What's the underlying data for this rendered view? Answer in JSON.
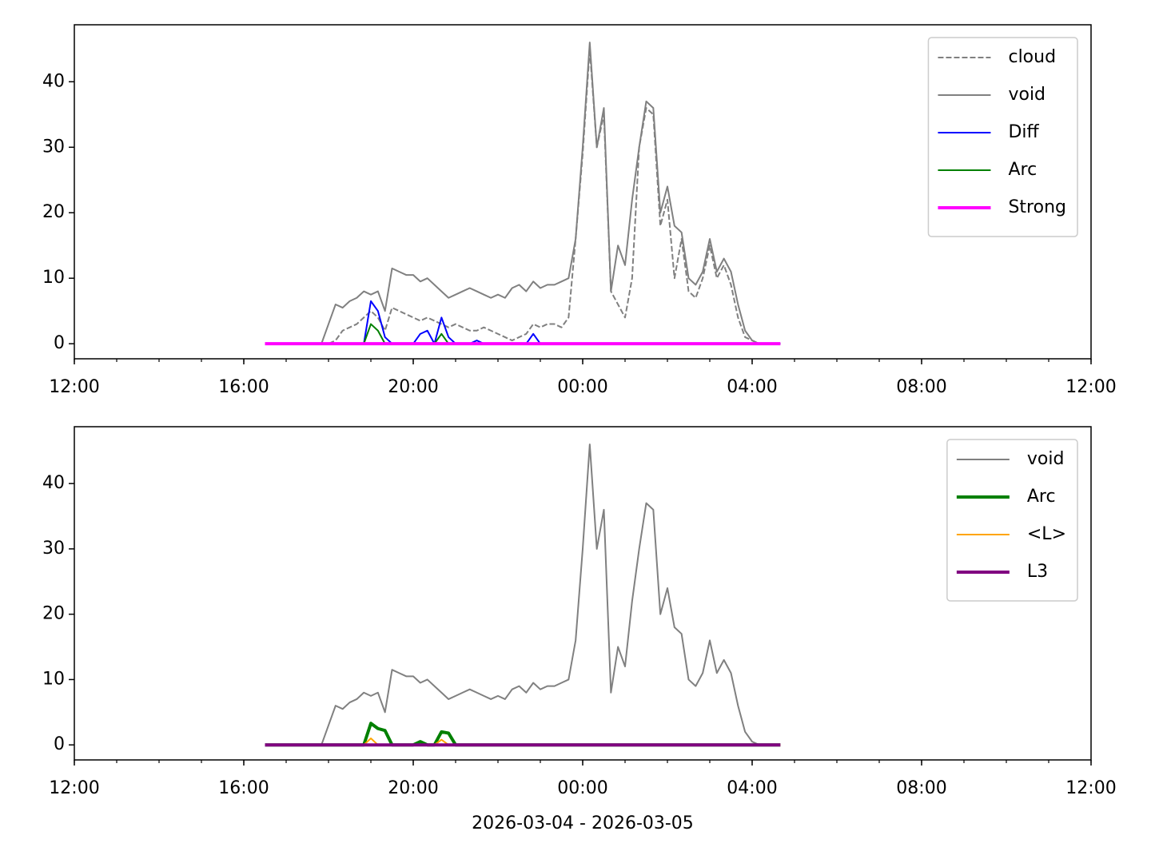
{
  "chart_data": [
    {
      "type": "line",
      "x": [
        "2026-03-04 16:30",
        "2026-03-04 16:40",
        "2026-03-04 16:50",
        "2026-03-04 17:00",
        "2026-03-04 17:10",
        "2026-03-04 17:20",
        "2026-03-04 17:30",
        "2026-03-04 17:40",
        "2026-03-04 17:50",
        "2026-03-04 18:00",
        "2026-03-04 18:10",
        "2026-03-04 18:20",
        "2026-03-04 18:30",
        "2026-03-04 18:40",
        "2026-03-04 18:50",
        "2026-03-04 19:00",
        "2026-03-04 19:10",
        "2026-03-04 19:20",
        "2026-03-04 19:30",
        "2026-03-04 19:40",
        "2026-03-04 19:50",
        "2026-03-04 20:00",
        "2026-03-04 20:10",
        "2026-03-04 20:20",
        "2026-03-04 20:30",
        "2026-03-04 20:40",
        "2026-03-04 20:50",
        "2026-03-04 21:00",
        "2026-03-04 21:10",
        "2026-03-04 21:20",
        "2026-03-04 21:30",
        "2026-03-04 21:40",
        "2026-03-04 21:50",
        "2026-03-04 22:00",
        "2026-03-04 22:10",
        "2026-03-04 22:20",
        "2026-03-04 22:30",
        "2026-03-04 22:40",
        "2026-03-04 22:50",
        "2026-03-04 23:00",
        "2026-03-04 23:10",
        "2026-03-04 23:20",
        "2026-03-04 23:30",
        "2026-03-04 23:40",
        "2026-03-04 23:50",
        "2026-03-05 00:00",
        "2026-03-05 00:10",
        "2026-03-05 00:20",
        "2026-03-05 00:30",
        "2026-03-05 00:40",
        "2026-03-05 00:50",
        "2026-03-05 01:00",
        "2026-03-05 01:10",
        "2026-03-05 01:20",
        "2026-03-05 01:30",
        "2026-03-05 01:40",
        "2026-03-05 01:50",
        "2026-03-05 02:00",
        "2026-03-05 02:10",
        "2026-03-05 02:20",
        "2026-03-05 02:30",
        "2026-03-05 02:40",
        "2026-03-05 02:50",
        "2026-03-05 03:00",
        "2026-03-05 03:10",
        "2026-03-05 03:20",
        "2026-03-05 03:30",
        "2026-03-05 03:40",
        "2026-03-05 03:50",
        "2026-03-05 04:00",
        "2026-03-05 04:10",
        "2026-03-05 04:20",
        "2026-03-05 04:30",
        "2026-03-05 04:40"
      ],
      "series": [
        {
          "name": "cloud",
          "color": "#808080",
          "linestyle": "dashed",
          "linewidth": 2,
          "values": [
            0,
            0,
            0,
            0,
            0,
            0,
            0,
            0,
            0,
            0,
            0.5,
            2,
            2.5,
            3,
            4,
            5,
            4,
            2,
            5.5,
            5,
            4.5,
            4,
            3.5,
            4,
            3.5,
            3,
            2.5,
            3,
            2.5,
            2,
            2,
            2.5,
            2,
            1.5,
            1,
            0.5,
            1,
            1.5,
            3,
            2.5,
            3,
            3,
            2.5,
            4,
            16,
            29,
            45,
            30,
            35,
            8,
            6,
            4,
            10,
            30,
            36,
            35,
            18,
            22,
            10,
            16,
            8,
            7,
            10,
            15,
            10,
            12,
            9,
            4,
            1,
            0.5,
            0,
            0,
            0,
            0
          ]
        },
        {
          "name": "void",
          "color": "#808080",
          "linestyle": "solid",
          "linewidth": 2,
          "values": [
            0,
            0,
            0,
            0,
            0,
            0,
            0,
            0,
            0,
            3,
            6,
            5.5,
            6.5,
            7,
            8,
            7.5,
            8,
            5,
            11.5,
            11,
            10.5,
            10.5,
            9.5,
            10,
            9,
            8,
            7,
            7.5,
            8,
            8.5,
            8,
            7.5,
            7,
            7.5,
            7,
            8.5,
            9,
            8,
            9.5,
            8.5,
            9,
            9,
            9.5,
            10,
            16,
            30,
            46,
            30,
            36,
            8,
            15,
            12,
            22,
            30,
            37,
            36,
            20,
            24,
            18,
            17,
            10,
            9,
            11,
            16,
            11,
            13,
            11,
            6,
            2,
            0.5,
            0,
            0,
            0,
            0
          ]
        },
        {
          "name": "Diff",
          "color": "#0000ff",
          "linestyle": "solid",
          "linewidth": 2,
          "values": [
            0,
            0,
            0,
            0,
            0,
            0,
            0,
            0,
            0,
            0,
            0,
            0,
            0,
            0,
            0,
            6.5,
            5,
            1,
            0,
            0,
            0,
            0,
            1.5,
            2,
            0,
            4,
            1,
            0,
            0,
            0,
            0.5,
            0,
            0,
            0,
            0,
            0,
            0,
            0,
            1.5,
            0,
            0,
            0,
            0,
            0,
            0,
            0,
            0,
            0,
            0,
            0,
            0,
            0,
            0,
            0,
            0,
            0,
            0,
            0,
            0,
            0,
            0,
            0,
            0,
            0,
            0,
            0,
            0,
            0,
            0,
            0,
            0,
            0,
            0,
            0
          ]
        },
        {
          "name": "Arc",
          "color": "#008000",
          "linestyle": "solid",
          "linewidth": 2,
          "values": [
            0,
            0,
            0,
            0,
            0,
            0,
            0,
            0,
            0,
            0,
            0,
            0,
            0,
            0,
            0,
            3,
            2,
            0,
            0,
            0,
            0,
            0,
            0,
            0,
            0,
            1.5,
            0,
            0,
            0,
            0,
            0,
            0,
            0,
            0,
            0,
            0,
            0,
            0,
            0,
            0,
            0,
            0,
            0,
            0,
            0,
            0,
            0,
            0,
            0,
            0,
            0,
            0,
            0,
            0,
            0,
            0,
            0,
            0,
            0,
            0,
            0,
            0,
            0,
            0,
            0,
            0,
            0,
            0,
            0,
            0,
            0,
            0,
            0,
            0
          ]
        },
        {
          "name": "Strong",
          "color": "#ff00ff",
          "linestyle": "solid",
          "linewidth": 4,
          "values": [
            0,
            0,
            0,
            0,
            0,
            0,
            0,
            0,
            0,
            0,
            0,
            0,
            0,
            0,
            0,
            0,
            0,
            0,
            0,
            0,
            0,
            0,
            0,
            0,
            0,
            0,
            0,
            0,
            0,
            0,
            0,
            0,
            0,
            0,
            0,
            0,
            0,
            0,
            0,
            0,
            0,
            0,
            0,
            0,
            0,
            0,
            0,
            0,
            0,
            0,
            0,
            0,
            0,
            0,
            0,
            0,
            0,
            0,
            0,
            0,
            0,
            0,
            0,
            0,
            0,
            0,
            0,
            0,
            0,
            0,
            0,
            0,
            0,
            0
          ]
        }
      ],
      "xlim": [
        "2026-03-04 12:00",
        "2026-03-05 12:00"
      ],
      "xticks": [
        {
          "value": "2026-03-04 12:00",
          "label": "12:00"
        },
        {
          "value": "2026-03-04 16:00",
          "label": "16:00"
        },
        {
          "value": "2026-03-04 20:00",
          "label": "20:00"
        },
        {
          "value": "2026-03-05 00:00",
          "label": "00:00"
        },
        {
          "value": "2026-03-05 04:00",
          "label": "04:00"
        },
        {
          "value": "2026-03-05 08:00",
          "label": "08:00"
        },
        {
          "value": "2026-03-05 12:00",
          "label": "12:00"
        }
      ],
      "ylim": [
        -2.3,
        48.7
      ],
      "yticks": [
        0,
        10,
        20,
        30,
        40
      ],
      "legend": "upper right"
    },
    {
      "type": "line",
      "x": [
        "2026-03-04 16:30",
        "2026-03-04 16:40",
        "2026-03-04 16:50",
        "2026-03-04 17:00",
        "2026-03-04 17:10",
        "2026-03-04 17:20",
        "2026-03-04 17:30",
        "2026-03-04 17:40",
        "2026-03-04 17:50",
        "2026-03-04 18:00",
        "2026-03-04 18:10",
        "2026-03-04 18:20",
        "2026-03-04 18:30",
        "2026-03-04 18:40",
        "2026-03-04 18:50",
        "2026-03-04 19:00",
        "2026-03-04 19:10",
        "2026-03-04 19:20",
        "2026-03-04 19:30",
        "2026-03-04 19:40",
        "2026-03-04 19:50",
        "2026-03-04 20:00",
        "2026-03-04 20:10",
        "2026-03-04 20:20",
        "2026-03-04 20:30",
        "2026-03-04 20:40",
        "2026-03-04 20:50",
        "2026-03-04 21:00",
        "2026-03-04 21:10",
        "2026-03-04 21:20",
        "2026-03-04 21:30",
        "2026-03-04 21:40",
        "2026-03-04 21:50",
        "2026-03-04 22:00",
        "2026-03-04 22:10",
        "2026-03-04 22:20",
        "2026-03-04 22:30",
        "2026-03-04 22:40",
        "2026-03-04 22:50",
        "2026-03-04 23:00",
        "2026-03-04 23:10",
        "2026-03-04 23:20",
        "2026-03-04 23:30",
        "2026-03-04 23:40",
        "2026-03-04 23:50",
        "2026-03-05 00:00",
        "2026-03-05 00:10",
        "2026-03-05 00:20",
        "2026-03-05 00:30",
        "2026-03-05 00:40",
        "2026-03-05 00:50",
        "2026-03-05 01:00",
        "2026-03-05 01:10",
        "2026-03-05 01:20",
        "2026-03-05 01:30",
        "2026-03-05 01:40",
        "2026-03-05 01:50",
        "2026-03-05 02:00",
        "2026-03-05 02:10",
        "2026-03-05 02:20",
        "2026-03-05 02:30",
        "2026-03-05 02:40",
        "2026-03-05 02:50",
        "2026-03-05 03:00",
        "2026-03-05 03:10",
        "2026-03-05 03:20",
        "2026-03-05 03:30",
        "2026-03-05 03:40",
        "2026-03-05 03:50",
        "2026-03-05 04:00",
        "2026-03-05 04:10",
        "2026-03-05 04:20",
        "2026-03-05 04:30",
        "2026-03-05 04:40"
      ],
      "series": [
        {
          "name": "void",
          "color": "#808080",
          "linestyle": "solid",
          "linewidth": 2,
          "values": [
            0,
            0,
            0,
            0,
            0,
            0,
            0,
            0,
            0,
            3,
            6,
            5.5,
            6.5,
            7,
            8,
            7.5,
            8,
            5,
            11.5,
            11,
            10.5,
            10.5,
            9.5,
            10,
            9,
            8,
            7,
            7.5,
            8,
            8.5,
            8,
            7.5,
            7,
            7.5,
            7,
            8.5,
            9,
            8,
            9.5,
            8.5,
            9,
            9,
            9.5,
            10,
            16,
            30,
            46,
            30,
            36,
            8,
            15,
            12,
            22,
            30,
            37,
            36,
            20,
            24,
            18,
            17,
            10,
            9,
            11,
            16,
            11,
            13,
            11,
            6,
            2,
            0.5,
            0,
            0,
            0,
            0
          ]
        },
        {
          "name": "Arc",
          "color": "#008000",
          "linestyle": "solid",
          "linewidth": 4,
          "values": [
            0,
            0,
            0,
            0,
            0,
            0,
            0,
            0,
            0,
            0,
            0,
            0,
            0,
            0,
            0,
            3.3,
            2.5,
            2.2,
            0,
            0,
            0,
            0,
            0.5,
            0,
            0,
            2,
            1.8,
            0,
            0,
            0,
            0,
            0,
            0,
            0,
            0,
            0,
            0,
            0,
            0,
            0,
            0,
            0,
            0,
            0,
            0,
            0,
            0,
            0,
            0,
            0,
            0,
            0,
            0,
            0,
            0,
            0,
            0,
            0,
            0,
            0,
            0,
            0,
            0,
            0,
            0,
            0,
            0,
            0,
            0,
            0,
            0,
            0,
            0,
            0
          ]
        },
        {
          "name": "<L>",
          "color": "#ffa500",
          "linestyle": "solid",
          "linewidth": 2,
          "values": [
            0,
            0,
            0,
            0,
            0,
            0,
            0,
            0,
            0,
            0,
            0,
            0,
            0,
            0,
            0,
            1,
            0,
            0,
            0,
            0,
            0,
            0,
            0,
            0,
            0,
            0.8,
            0,
            0,
            0,
            0,
            0,
            0,
            0,
            0,
            0,
            0,
            0,
            0,
            0,
            0,
            0,
            0,
            0,
            0,
            0,
            0,
            0,
            0,
            0,
            0,
            0,
            0,
            0,
            0,
            0,
            0,
            0,
            0,
            0,
            0,
            0,
            0,
            0,
            0,
            0,
            0,
            0,
            0,
            0,
            0,
            0,
            0,
            0,
            0
          ]
        },
        {
          "name": "L3",
          "color": "#800080",
          "linestyle": "solid",
          "linewidth": 4,
          "values": [
            0,
            0,
            0,
            0,
            0,
            0,
            0,
            0,
            0,
            0,
            0,
            0,
            0,
            0,
            0,
            0,
            0,
            0,
            0,
            0,
            0,
            0,
            0,
            0,
            0,
            0,
            0,
            0,
            0,
            0,
            0,
            0,
            0,
            0,
            0,
            0,
            0,
            0,
            0,
            0,
            0,
            0,
            0,
            0,
            0,
            0,
            0,
            0,
            0,
            0,
            0,
            0,
            0,
            0,
            0,
            0,
            0,
            0,
            0,
            0,
            0,
            0,
            0,
            0,
            0,
            0,
            0,
            0,
            0,
            0,
            0,
            0,
            0,
            0
          ]
        }
      ],
      "xlim": [
        "2026-03-04 12:00",
        "2026-03-05 12:00"
      ],
      "xticks": [
        {
          "value": "2026-03-04 12:00",
          "label": "12:00"
        },
        {
          "value": "2026-03-04 16:00",
          "label": "16:00"
        },
        {
          "value": "2026-03-04 20:00",
          "label": "20:00"
        },
        {
          "value": "2026-03-05 00:00",
          "label": "00:00"
        },
        {
          "value": "2026-03-05 04:00",
          "label": "04:00"
        },
        {
          "value": "2026-03-05 08:00",
          "label": "08:00"
        },
        {
          "value": "2026-03-05 12:00",
          "label": "12:00"
        }
      ],
      "ylim": [
        -2.3,
        48.7
      ],
      "yticks": [
        0,
        10,
        20,
        30,
        40
      ],
      "legend": "upper right",
      "xlabel": "2026-03-04 - 2026-03-05"
    }
  ]
}
